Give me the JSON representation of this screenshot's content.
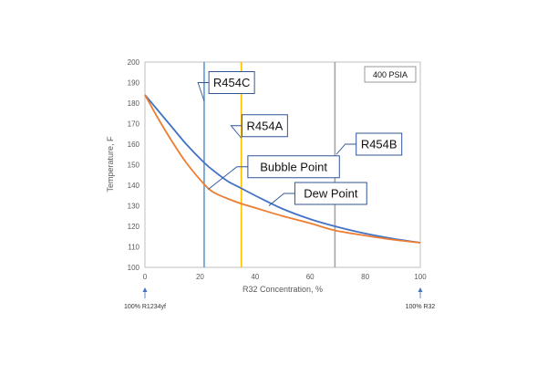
{
  "chart_data": {
    "type": "line",
    "title": "",
    "xlabel": "R32 Concentration, %",
    "ylabel": "Temperature, F",
    "xlim": [
      0,
      100
    ],
    "ylim": [
      100,
      200
    ],
    "xticks": [
      0,
      20,
      40,
      60,
      80,
      100
    ],
    "yticks": [
      100,
      110,
      120,
      130,
      140,
      150,
      160,
      170,
      180,
      190,
      200
    ],
    "grid": false,
    "pressure_label": "400 PSIA",
    "colors": {
      "dew": "#4472c4",
      "bubble": "#ed7d31",
      "r454c": "#5b9bd5",
      "r454a": "#ffc000",
      "r454b": "#a5a5a5",
      "callout_border": "#2f5597",
      "end_arrow": "#4472c4"
    },
    "series": [
      {
        "name": "Dew Point",
        "color": "#4472c4",
        "x": [
          0,
          5,
          10,
          15,
          21.5,
          25,
          30,
          35,
          40,
          50,
          60,
          69,
          80,
          90,
          100
        ],
        "y": [
          184,
          176,
          168,
          160,
          151,
          147,
          142,
          138.5,
          135,
          128.5,
          123.5,
          120,
          116.5,
          114,
          112
        ]
      },
      {
        "name": "Bubble Point",
        "color": "#ed7d31",
        "x": [
          0,
          5,
          10,
          15,
          21.5,
          25,
          30,
          35,
          40,
          50,
          60,
          69,
          80,
          90,
          100
        ],
        "y": [
          184,
          172,
          161,
          151,
          140.5,
          136.5,
          133.5,
          131,
          129,
          125,
          121.5,
          118,
          115.5,
          113.5,
          112
        ]
      }
    ],
    "vertical_lines": [
      {
        "name": "R454C",
        "x": 21.5,
        "color": "#5b9bd5"
      },
      {
        "name": "R454A",
        "x": 35,
        "color": "#ffc000"
      },
      {
        "name": "R454B",
        "x": 69,
        "color": "#a5a5a5"
      }
    ],
    "callouts": [
      {
        "text": "R454C",
        "box_x": 31.5,
        "box_y": 190,
        "anchor_x": 21.5,
        "anchor_y": 181
      },
      {
        "text": "R454A",
        "box_x": 43.5,
        "box_y": 169,
        "anchor_x": 35,
        "anchor_y": 163
      },
      {
        "text": "R454B",
        "box_x": 85,
        "box_y": 160,
        "anchor_x": 69.5,
        "anchor_y": 155
      },
      {
        "text": "Bubble Point",
        "box_x": 54,
        "box_y": 149,
        "anchor_x": 23,
        "anchor_y": 138
      },
      {
        "text": "Dew Point",
        "box_x": 67.5,
        "box_y": 136,
        "anchor_x": 45,
        "anchor_y": 130
      }
    ],
    "end_labels": [
      {
        "text": "100% R1234yf",
        "x": 0
      },
      {
        "text": "100% R32",
        "x": 100
      }
    ]
  }
}
